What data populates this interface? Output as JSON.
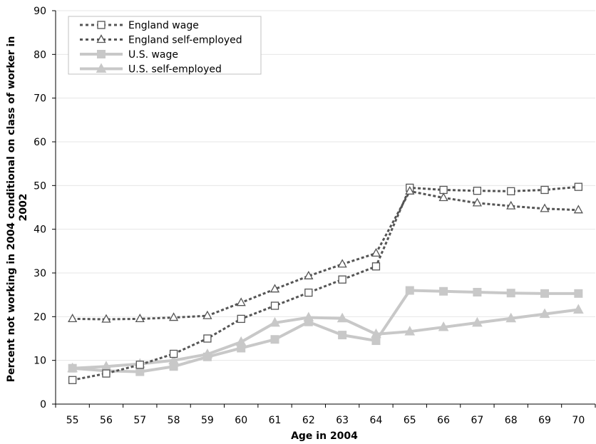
{
  "chart_data": {
    "type": "line",
    "xlabel": "Age in 2004",
    "ylabel_lines": [
      "Percent not working in 2004 conditional on class of worker in",
      "2002"
    ],
    "x": [
      55,
      56,
      57,
      58,
      59,
      60,
      61,
      62,
      63,
      64,
      65,
      66,
      67,
      68,
      69,
      70
    ],
    "ylim": [
      0,
      90
    ],
    "yticks": [
      0,
      10,
      20,
      30,
      40,
      50,
      60,
      70,
      80,
      90
    ],
    "grid": "horizontal",
    "legend_position": "top-left",
    "series": [
      {
        "name": "England wage",
        "values": [
          5.5,
          7,
          9,
          11.5,
          15,
          19.5,
          22.5,
          25.5,
          28.5,
          31.5,
          49.5,
          49,
          48.8,
          48.7,
          49,
          49.7
        ],
        "color": "#555555",
        "dash": true,
        "marker": "square-open"
      },
      {
        "name": "England self-employed",
        "values": [
          19.5,
          19.4,
          19.5,
          19.8,
          20.2,
          23.2,
          26.3,
          29.3,
          32,
          34.5,
          48.7,
          47.2,
          46,
          45.3,
          44.7,
          44.4
        ],
        "color": "#555555",
        "dash": true,
        "marker": "triangle-open"
      },
      {
        "name": "U.S. wage",
        "values": [
          8.2,
          7.6,
          7.4,
          8.6,
          10.8,
          12.8,
          14.8,
          18.8,
          15.8,
          14.5,
          26,
          25.8,
          25.6,
          25.4,
          25.3,
          25.3
        ],
        "color": "#c8c8c8",
        "dash": false,
        "marker": "square-filled"
      },
      {
        "name": "U.S. self-employed",
        "values": [
          8.2,
          8.6,
          9.2,
          10,
          11.4,
          14.2,
          18.6,
          19.8,
          19.6,
          16,
          16.6,
          17.6,
          18.6,
          19.6,
          20.6,
          21.6
        ],
        "color": "#c8c8c8",
        "dash": false,
        "marker": "triangle-filled"
      }
    ]
  }
}
